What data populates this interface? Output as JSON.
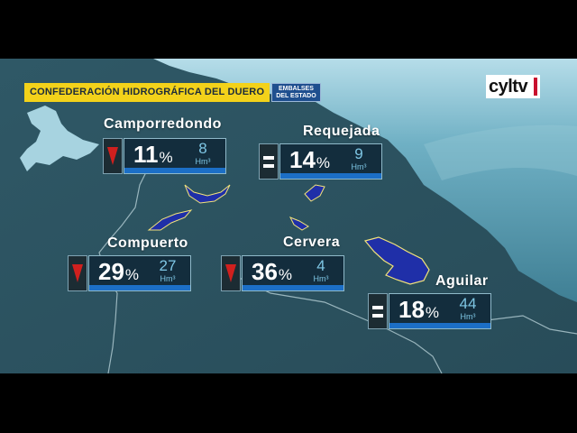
{
  "header": {
    "title": "CONFEDERACIÓN HIDROGRÁFICA DEL DUERO",
    "badge_line1": "EMBALSES",
    "badge_line2": "DEL ESTADO"
  },
  "logo": {
    "text": "cyltv"
  },
  "unit_label": "Hm³",
  "reservoirs": [
    {
      "name": "Camporredondo",
      "percent": "11",
      "percent_symbol": "%",
      "volume": "8",
      "trend": "down-arrow-icon"
    },
    {
      "name": "Requejada",
      "percent": "14",
      "percent_symbol": "%",
      "volume": "9",
      "trend": "equal-icon"
    },
    {
      "name": "Compuerto",
      "percent": "29",
      "percent_symbol": "%",
      "volume": "27",
      "trend": "down-arrow-icon"
    },
    {
      "name": "Cervera",
      "percent": "36",
      "percent_symbol": "%",
      "volume": "4",
      "trend": "down-arrow-icon"
    },
    {
      "name": "Aguilar",
      "percent": "18",
      "percent_symbol": "%",
      "volume": "44",
      "trend": "equal-icon"
    }
  ],
  "colors": {
    "land": "#2e5562",
    "sea": "#5b9eb2",
    "sky": "#a7d3e0",
    "header_yellow": "#f3d21a",
    "header_blue": "#1f4f8f",
    "down_arrow": "#d0201e",
    "card_bar": "#1c6fc6",
    "volume_text": "#7ec6e4",
    "reservoir_fill": "#1f2fa8"
  }
}
